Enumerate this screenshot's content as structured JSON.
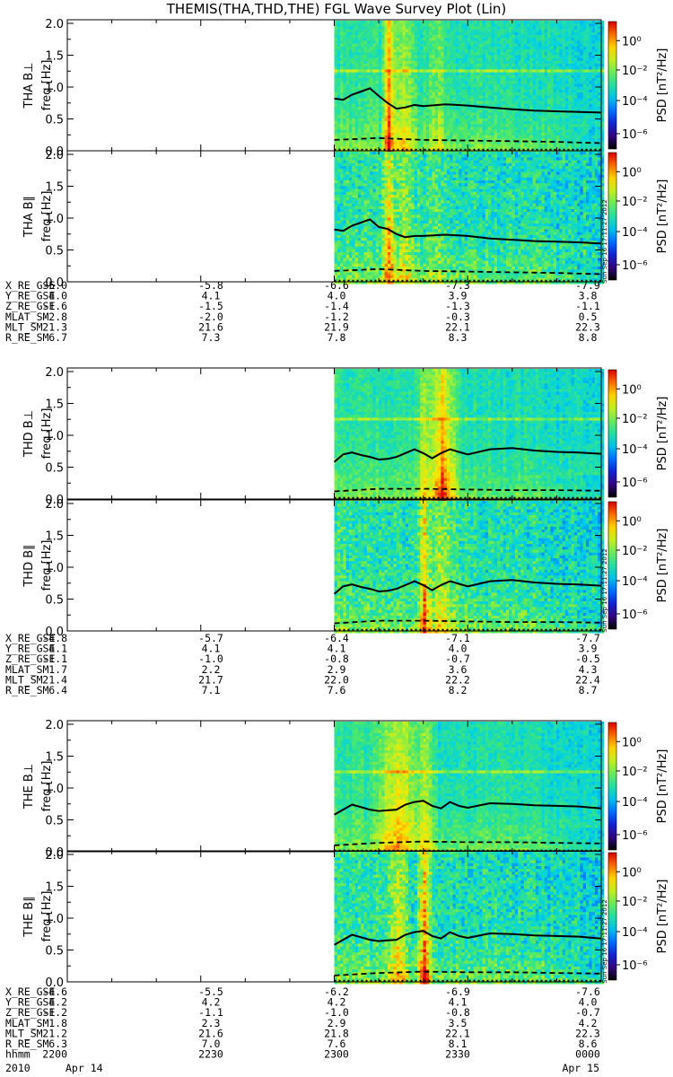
{
  "title": "THEMIS(THA,THD,THE) FGL Wave Survey Plot (Lin)",
  "colorbar": {
    "label": "PSD [nT²/Hz]",
    "tick_labels": [
      "10⁰",
      "10⁻²",
      "10⁻⁴",
      "10⁻⁶"
    ],
    "side_stamp": "Sun Sep 16 17:11:27 2012"
  },
  "panels": [
    {
      "component": "THA B⊥",
      "ylabel": "freq [Hz]",
      "yticks": [
        "2.0",
        "1.5",
        "1.0",
        "0.5",
        "0.0"
      ]
    },
    {
      "component": "THA B∥",
      "ylabel": "freq [Hz]",
      "yticks": [
        "2.0",
        "1.5",
        "1.0",
        "0.5",
        "0.0"
      ]
    },
    {
      "component": "THD B⊥",
      "ylabel": "freq [Hz]",
      "yticks": [
        "2.0",
        "1.5",
        "1.0",
        "0.5",
        "0.0"
      ]
    },
    {
      "component": "THD B∥",
      "ylabel": "freq [Hz]",
      "yticks": [
        "2.0",
        "1.5",
        "1.0",
        "0.5",
        "0.0"
      ]
    },
    {
      "component": "THE B⊥",
      "ylabel": "freq [Hz]",
      "yticks": [
        "2.0",
        "1.5",
        "1.0",
        "0.5",
        "0.0"
      ]
    },
    {
      "component": "THE B∥",
      "ylabel": "freq [Hz]",
      "yticks": [
        "2.0",
        "1.5",
        "1.0",
        "0.5",
        "0.0"
      ]
    }
  ],
  "ephemeris": [
    {
      "rows": [
        {
          "label": "X_RE_GSE",
          "values": [
            "-5.0",
            "-5.8",
            "-6.6",
            "-7.3",
            "-7.9"
          ]
        },
        {
          "label": "Y_RE_GSE",
          "values": [
            "4.0",
            "4.1",
            "4.0",
            "3.9",
            "3.8"
          ]
        },
        {
          "label": "Z_RE_GSE",
          "values": [
            "-1.6",
            "-1.5",
            "-1.4",
            "-1.3",
            "-1.1"
          ]
        },
        {
          "label": "MLAT_SM",
          "values": [
            "-2.8",
            "-2.0",
            "-1.2",
            "-0.3",
            "0.5"
          ]
        },
        {
          "label": "MLT_SM",
          "values": [
            "21.3",
            "21.6",
            "21.9",
            "22.1",
            "22.3"
          ]
        },
        {
          "label": "R_RE_SM",
          "values": [
            "6.7",
            "7.3",
            "7.8",
            "8.3",
            "8.8"
          ]
        }
      ]
    },
    {
      "rows": [
        {
          "label": "X_RE_GSE",
          "values": [
            "-4.8",
            "-5.7",
            "-6.4",
            "-7.1",
            "-7.7"
          ]
        },
        {
          "label": "Y_RE_GSE",
          "values": [
            "4.1",
            "4.1",
            "4.1",
            "4.0",
            "3.9"
          ]
        },
        {
          "label": "Z_RE_GSE",
          "values": [
            "-1.1",
            "-1.0",
            "-0.8",
            "-0.7",
            "-0.5"
          ]
        },
        {
          "label": "MLAT_SM",
          "values": [
            "1.7",
            "2.2",
            "2.9",
            "3.6",
            "4.3"
          ]
        },
        {
          "label": "MLT_SM",
          "values": [
            "21.4",
            "21.7",
            "22.0",
            "22.2",
            "22.4"
          ]
        },
        {
          "label": "R_RE_SM",
          "values": [
            "6.4",
            "7.1",
            "7.6",
            "8.2",
            "8.7"
          ]
        }
      ]
    },
    {
      "rows": [
        {
          "label": "X_RE_GSE",
          "values": [
            "-4.6",
            "-5.5",
            "-6.2",
            "-6.9",
            "-7.6"
          ]
        },
        {
          "label": "Y_RE_GSE",
          "values": [
            "4.2",
            "4.2",
            "4.2",
            "4.1",
            "4.0"
          ]
        },
        {
          "label": "Z_RE_GSE",
          "values": [
            "-1.2",
            "-1.1",
            "-1.0",
            "-0.8",
            "-0.7"
          ]
        },
        {
          "label": "MLAT_SM",
          "values": [
            "1.8",
            "2.3",
            "2.9",
            "3.5",
            "4.2"
          ]
        },
        {
          "label": "MLT_SM",
          "values": [
            "21.2",
            "21.6",
            "21.8",
            "22.1",
            "22.3"
          ]
        },
        {
          "label": "R_RE_SM",
          "values": [
            "6.3",
            "7.0",
            "7.6",
            "8.1",
            "8.6"
          ]
        },
        {
          "label": "hhmm",
          "values": [
            "2200",
            "2230",
            "2300",
            "2330",
            "0000"
          ]
        }
      ]
    }
  ],
  "date_row": {
    "year": "2010",
    "start": "Apr 14",
    "end": "Apr 15"
  },
  "chart_data": {
    "type": "heatmap",
    "title": "THEMIS(THA,THD,THE) FGL Wave Survey Plot (Lin)",
    "x_time_ticks": [
      "2200",
      "2230",
      "2300",
      "2330",
      "0000"
    ],
    "x_range_minutes": [
      0,
      120
    ],
    "data_start_minute": 60,
    "ylabel": "freq [Hz]",
    "ylim": [
      0,
      2.0
    ],
    "z_scale": "log",
    "zlim": [
      1e-07,
      10
    ],
    "panels": [
      {
        "name": "THA B⊥",
        "bursts": [
          {
            "minute": 72,
            "width": 2,
            "level": 1.0
          },
          {
            "minute": 75,
            "width": 4,
            "level": 0.5
          },
          {
            "minute": 83,
            "width": 3,
            "level": 0.3
          }
        ],
        "fce_line": {
          "minutes": [
            60,
            62,
            64,
            66,
            68,
            70,
            72,
            74,
            76,
            78,
            80,
            85,
            90,
            95,
            100,
            105,
            110,
            115,
            120
          ],
          "values": [
            0.82,
            0.8,
            0.88,
            0.93,
            0.98,
            0.86,
            0.75,
            0.66,
            0.68,
            0.72,
            0.7,
            0.73,
            0.71,
            0.68,
            0.65,
            0.63,
            0.62,
            0.61,
            0.6
          ]
        },
        "dashed_line": {
          "minutes": [
            60,
            70,
            80,
            90,
            100,
            110,
            120
          ],
          "values": [
            0.17,
            0.2,
            0.17,
            0.16,
            0.15,
            0.14,
            0.12
          ]
        },
        "dotted_line": {
          "minutes": [
            60,
            120
          ],
          "values": [
            0.02,
            0.02
          ]
        }
      },
      {
        "name": "THA B∥",
        "bursts": [
          {
            "minute": 72,
            "width": 2,
            "level": 0.8
          },
          {
            "minute": 75,
            "width": 4,
            "level": 0.4
          },
          {
            "minute": 83,
            "width": 3,
            "level": 0.25
          }
        ],
        "fce_line": {
          "minutes": [
            60,
            62,
            64,
            66,
            68,
            70,
            72,
            74,
            76,
            78,
            80,
            85,
            90,
            95,
            100,
            105,
            110,
            115,
            120
          ],
          "values": [
            0.82,
            0.8,
            0.88,
            0.93,
            0.98,
            0.86,
            0.83,
            0.75,
            0.7,
            0.72,
            0.72,
            0.74,
            0.72,
            0.68,
            0.66,
            0.64,
            0.63,
            0.62,
            0.6
          ]
        },
        "dashed_line": {
          "minutes": [
            60,
            70,
            80,
            90,
            100,
            110,
            120
          ],
          "values": [
            0.17,
            0.2,
            0.17,
            0.16,
            0.15,
            0.14,
            0.12
          ]
        },
        "dotted_line": {
          "minutes": [
            60,
            120
          ],
          "values": [
            0.02,
            0.02
          ]
        }
      },
      {
        "name": "THD B⊥",
        "bursts": [
          {
            "minute": 80,
            "width": 2,
            "level": 0.6
          },
          {
            "minute": 84,
            "width": 4,
            "level": 1.0
          }
        ],
        "fce_line": {
          "minutes": [
            60,
            62,
            64,
            66,
            68,
            70,
            72,
            74,
            76,
            78,
            80,
            82,
            84,
            86,
            88,
            90,
            95,
            100,
            105,
            110,
            115,
            120
          ],
          "values": [
            0.58,
            0.7,
            0.73,
            0.69,
            0.66,
            0.62,
            0.63,
            0.66,
            0.72,
            0.78,
            0.72,
            0.64,
            0.72,
            0.78,
            0.74,
            0.7,
            0.78,
            0.8,
            0.76,
            0.74,
            0.73,
            0.71
          ]
        },
        "dashed_line": {
          "minutes": [
            60,
            70,
            80,
            90,
            100,
            110,
            120
          ],
          "values": [
            0.12,
            0.16,
            0.16,
            0.15,
            0.14,
            0.14,
            0.13
          ]
        },
        "dotted_line": {
          "minutes": [
            60,
            120
          ],
          "values": [
            0.02,
            0.02
          ]
        }
      },
      {
        "name": "THD B∥",
        "bursts": [
          {
            "minute": 80,
            "width": 2,
            "level": 0.9
          },
          {
            "minute": 84,
            "width": 4,
            "level": 0.5
          }
        ],
        "fce_line": {
          "minutes": [
            60,
            62,
            64,
            66,
            68,
            70,
            72,
            74,
            76,
            78,
            80,
            82,
            84,
            86,
            88,
            90,
            95,
            100,
            105,
            110,
            115,
            120
          ],
          "values": [
            0.58,
            0.7,
            0.73,
            0.69,
            0.66,
            0.62,
            0.63,
            0.66,
            0.72,
            0.78,
            0.72,
            0.64,
            0.72,
            0.78,
            0.74,
            0.7,
            0.78,
            0.8,
            0.76,
            0.74,
            0.73,
            0.71
          ]
        },
        "dashed_line": {
          "minutes": [
            60,
            70,
            80,
            90,
            100,
            110,
            120
          ],
          "values": [
            0.12,
            0.16,
            0.16,
            0.15,
            0.14,
            0.14,
            0.13
          ]
        },
        "dotted_line": {
          "minutes": [
            60,
            120
          ],
          "values": [
            0.02,
            0.02
          ]
        }
      },
      {
        "name": "THE B⊥",
        "bursts": [
          {
            "minute": 74,
            "width": 6,
            "level": 0.7
          },
          {
            "minute": 80,
            "width": 3,
            "level": 0.5
          }
        ],
        "fce_line": {
          "minutes": [
            60,
            62,
            64,
            66,
            68,
            70,
            72,
            74,
            76,
            78,
            80,
            82,
            84,
            86,
            88,
            90,
            95,
            100,
            105,
            110,
            115,
            120
          ],
          "values": [
            0.58,
            0.66,
            0.74,
            0.7,
            0.66,
            0.64,
            0.65,
            0.66,
            0.74,
            0.78,
            0.8,
            0.72,
            0.68,
            0.78,
            0.72,
            0.69,
            0.76,
            0.75,
            0.73,
            0.72,
            0.71,
            0.68
          ]
        },
        "dashed_line": {
          "minutes": [
            60,
            70,
            80,
            90,
            100,
            110,
            120
          ],
          "values": [
            0.1,
            0.14,
            0.16,
            0.15,
            0.15,
            0.14,
            0.13
          ]
        },
        "dotted_line": {
          "minutes": [
            60,
            120
          ],
          "values": [
            0.02,
            0.02
          ]
        }
      },
      {
        "name": "THE B∥",
        "bursts": [
          {
            "minute": 74,
            "width": 3,
            "level": 0.6
          },
          {
            "minute": 80,
            "width": 2,
            "level": 1.0
          }
        ],
        "fce_line": {
          "minutes": [
            60,
            62,
            64,
            66,
            68,
            70,
            72,
            74,
            76,
            78,
            80,
            82,
            84,
            86,
            88,
            90,
            95,
            100,
            105,
            110,
            115,
            120
          ],
          "values": [
            0.58,
            0.66,
            0.74,
            0.7,
            0.66,
            0.64,
            0.65,
            0.66,
            0.74,
            0.78,
            0.8,
            0.72,
            0.68,
            0.78,
            0.72,
            0.69,
            0.76,
            0.75,
            0.73,
            0.72,
            0.71,
            0.68
          ]
        },
        "dashed_line": {
          "minutes": [
            60,
            70,
            80,
            90,
            100,
            110,
            120
          ],
          "values": [
            0.1,
            0.14,
            0.16,
            0.15,
            0.15,
            0.14,
            0.13
          ]
        },
        "dotted_line": {
          "minutes": [
            60,
            120
          ],
          "values": [
            0.02,
            0.02
          ]
        }
      }
    ]
  }
}
